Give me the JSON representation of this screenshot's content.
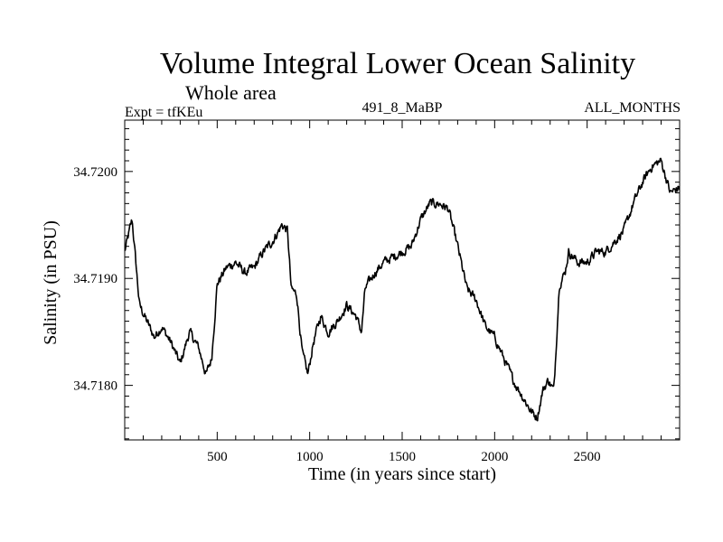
{
  "header": {
    "title": "Volume Integral Lower Ocean Salinity",
    "subtitle": "Whole area",
    "expt": "Expt = tfKEu",
    "run": "491_8_MaBP",
    "months": "ALL_MONTHS"
  },
  "chart_data": {
    "type": "line",
    "title": "Volume Integral Lower Ocean Salinity",
    "xlabel": "Time (in years since start)",
    "ylabel": "Salinity (in PSU)",
    "xlim": [
      0,
      3000
    ],
    "ylim": [
      34.71749,
      34.72048
    ],
    "x_ticks": [
      500,
      1000,
      1500,
      2000,
      2500
    ],
    "x_tick_labels": [
      "500",
      "1000",
      "1500",
      "2000",
      "2500"
    ],
    "y_ticks": [
      34.718,
      34.719,
      34.72
    ],
    "y_tick_labels": [
      "34.7180",
      "34.7190",
      "34.7200"
    ],
    "grid": false,
    "series": [
      {
        "color": "#000000",
        "x": [
          0,
          40,
          80,
          120,
          160,
          200,
          250,
          300,
          350,
          400,
          440,
          470,
          500,
          550,
          600,
          650,
          700,
          750,
          800,
          850,
          880,
          900,
          930,
          960,
          990,
          1020,
          1060,
          1100,
          1150,
          1200,
          1250,
          1280,
          1300,
          1350,
          1400,
          1450,
          1500,
          1550,
          1600,
          1650,
          1700,
          1750,
          1800,
          1850,
          1900,
          1950,
          2000,
          2050,
          2100,
          2150,
          2200,
          2230,
          2260,
          2290,
          2320,
          2350,
          2380,
          2400,
          2450,
          2500,
          2550,
          2600,
          2650,
          2700,
          2750,
          2800,
          2850,
          2900,
          2950,
          3000
        ],
        "y": [
          34.71925,
          34.71955,
          34.71875,
          34.7186,
          34.71845,
          34.71855,
          34.7184,
          34.7182,
          34.7185,
          34.71835,
          34.7181,
          34.71825,
          34.71895,
          34.7191,
          34.71915,
          34.71905,
          34.7191,
          34.71925,
          34.71935,
          34.7195,
          34.71945,
          34.7189,
          34.71885,
          34.7183,
          34.7181,
          34.7184,
          34.71865,
          34.7185,
          34.7186,
          34.71875,
          34.71865,
          34.7185,
          34.7189,
          34.71905,
          34.71915,
          34.7192,
          34.71925,
          34.7193,
          34.71955,
          34.7197,
          34.7197,
          34.71965,
          34.7193,
          34.7189,
          34.7188,
          34.71855,
          34.71845,
          34.71825,
          34.71805,
          34.7179,
          34.71775,
          34.7177,
          34.71795,
          34.71805,
          34.71795,
          34.71895,
          34.71905,
          34.71925,
          34.71915,
          34.71915,
          34.71925,
          34.71925,
          34.71935,
          34.71945,
          34.7197,
          34.7199,
          34.72005,
          34.7201,
          34.7198,
          34.71985
        ]
      }
    ]
  }
}
